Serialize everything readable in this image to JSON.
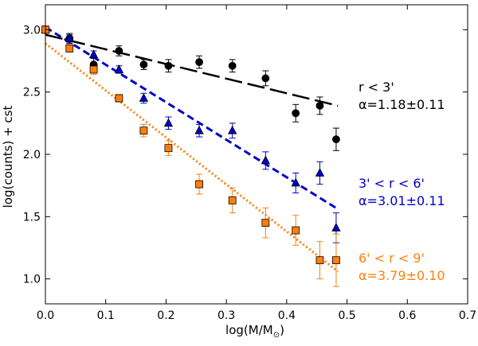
{
  "chart_data": {
    "type": "scatter",
    "xlabel": "log(M/M",
    "xlabel_sub": "⊙",
    "xlabel_close": ")",
    "ylabel": "log(counts) + cst",
    "xlim": [
      0.0,
      0.7
    ],
    "ylim": [
      0.8,
      3.2
    ],
    "xticks": [
      0.0,
      0.1,
      0.2,
      0.3,
      0.4,
      0.5,
      0.6,
      0.7
    ],
    "xtick_labels": [
      "0.0",
      "0.1",
      "0.2",
      "0.3",
      "0.4",
      "0.5",
      "0.6",
      "0.7"
    ],
    "yticks": [
      1.0,
      1.5,
      2.0,
      2.5,
      3.0
    ],
    "ytick_labels": [
      "1.0",
      "1.5",
      "2.0",
      "2.5",
      "3.0"
    ],
    "series": [
      {
        "name": "r < 3'",
        "label_line1": "r < 3'",
        "label_alpha": "α=1.18±0.11",
        "color": "#000000",
        "marker": "circle",
        "points": [
          {
            "x": 0.0,
            "y": 3.0,
            "err": 0.03
          },
          {
            "x": 0.04,
            "y": 2.93,
            "err": 0.04
          },
          {
            "x": 0.08,
            "y": 2.72,
            "err": 0.05
          },
          {
            "x": 0.122,
            "y": 2.83,
            "err": 0.04
          },
          {
            "x": 0.163,
            "y": 2.72,
            "err": 0.04
          },
          {
            "x": 0.204,
            "y": 2.71,
            "err": 0.05
          },
          {
            "x": 0.255,
            "y": 2.74,
            "err": 0.05
          },
          {
            "x": 0.31,
            "y": 2.71,
            "err": 0.05
          },
          {
            "x": 0.365,
            "y": 2.61,
            "err": 0.06
          },
          {
            "x": 0.415,
            "y": 2.33,
            "err": 0.07
          },
          {
            "x": 0.455,
            "y": 2.39,
            "err": 0.07
          },
          {
            "x": 0.482,
            "y": 2.12,
            "err": 0.09
          }
        ],
        "fit": {
          "x0": 0.0,
          "y0": 2.96,
          "x1": 0.485,
          "y1": 2.39,
          "style": "longdash"
        }
      },
      {
        "name": "3' < r < 6'",
        "label_line1": "3' < r < 6'",
        "label_alpha": "α=3.01±0.11",
        "color": "#0000cc",
        "marker": "triangle",
        "points": [
          {
            "x": 0.0,
            "y": 3.0,
            "err": 0.03
          },
          {
            "x": 0.04,
            "y": 2.93,
            "err": 0.03
          },
          {
            "x": 0.08,
            "y": 2.8,
            "err": 0.03
          },
          {
            "x": 0.122,
            "y": 2.68,
            "err": 0.03
          },
          {
            "x": 0.163,
            "y": 2.45,
            "err": 0.04
          },
          {
            "x": 0.204,
            "y": 2.25,
            "err": 0.05
          },
          {
            "x": 0.255,
            "y": 2.19,
            "err": 0.05
          },
          {
            "x": 0.31,
            "y": 2.19,
            "err": 0.06
          },
          {
            "x": 0.365,
            "y": 1.95,
            "err": 0.07
          },
          {
            "x": 0.415,
            "y": 1.77,
            "err": 0.08
          },
          {
            "x": 0.455,
            "y": 1.85,
            "err": 0.09
          },
          {
            "x": 0.482,
            "y": 1.41,
            "err": 0.12
          }
        ],
        "fit": {
          "x0": 0.0,
          "y0": 3.02,
          "x1": 0.485,
          "y1": 1.56,
          "style": "dashed"
        }
      },
      {
        "name": "6' < r < 9'",
        "label_line1": "6' < r < 9'",
        "label_alpha": "α=3.79±0.10",
        "color": "#ff7f0e",
        "marker": "square",
        "points": [
          {
            "x": 0.0,
            "y": 3.0,
            "err": 0.03
          },
          {
            "x": 0.04,
            "y": 2.85,
            "err": 0.03
          },
          {
            "x": 0.08,
            "y": 2.68,
            "err": 0.04
          },
          {
            "x": 0.122,
            "y": 2.45,
            "err": 0.03
          },
          {
            "x": 0.163,
            "y": 2.19,
            "err": 0.05
          },
          {
            "x": 0.204,
            "y": 2.05,
            "err": 0.06
          },
          {
            "x": 0.255,
            "y": 1.76,
            "err": 0.08
          },
          {
            "x": 0.31,
            "y": 1.63,
            "err": 0.1
          },
          {
            "x": 0.365,
            "y": 1.45,
            "err": 0.12
          },
          {
            "x": 0.415,
            "y": 1.39,
            "err": 0.12
          },
          {
            "x": 0.455,
            "y": 1.15,
            "err": 0.15
          },
          {
            "x": 0.482,
            "y": 1.15,
            "err": 0.21
          }
        ],
        "fit": {
          "x0": 0.0,
          "y0": 2.89,
          "x1": 0.485,
          "y1": 1.06,
          "style": "dotted"
        }
      }
    ]
  }
}
